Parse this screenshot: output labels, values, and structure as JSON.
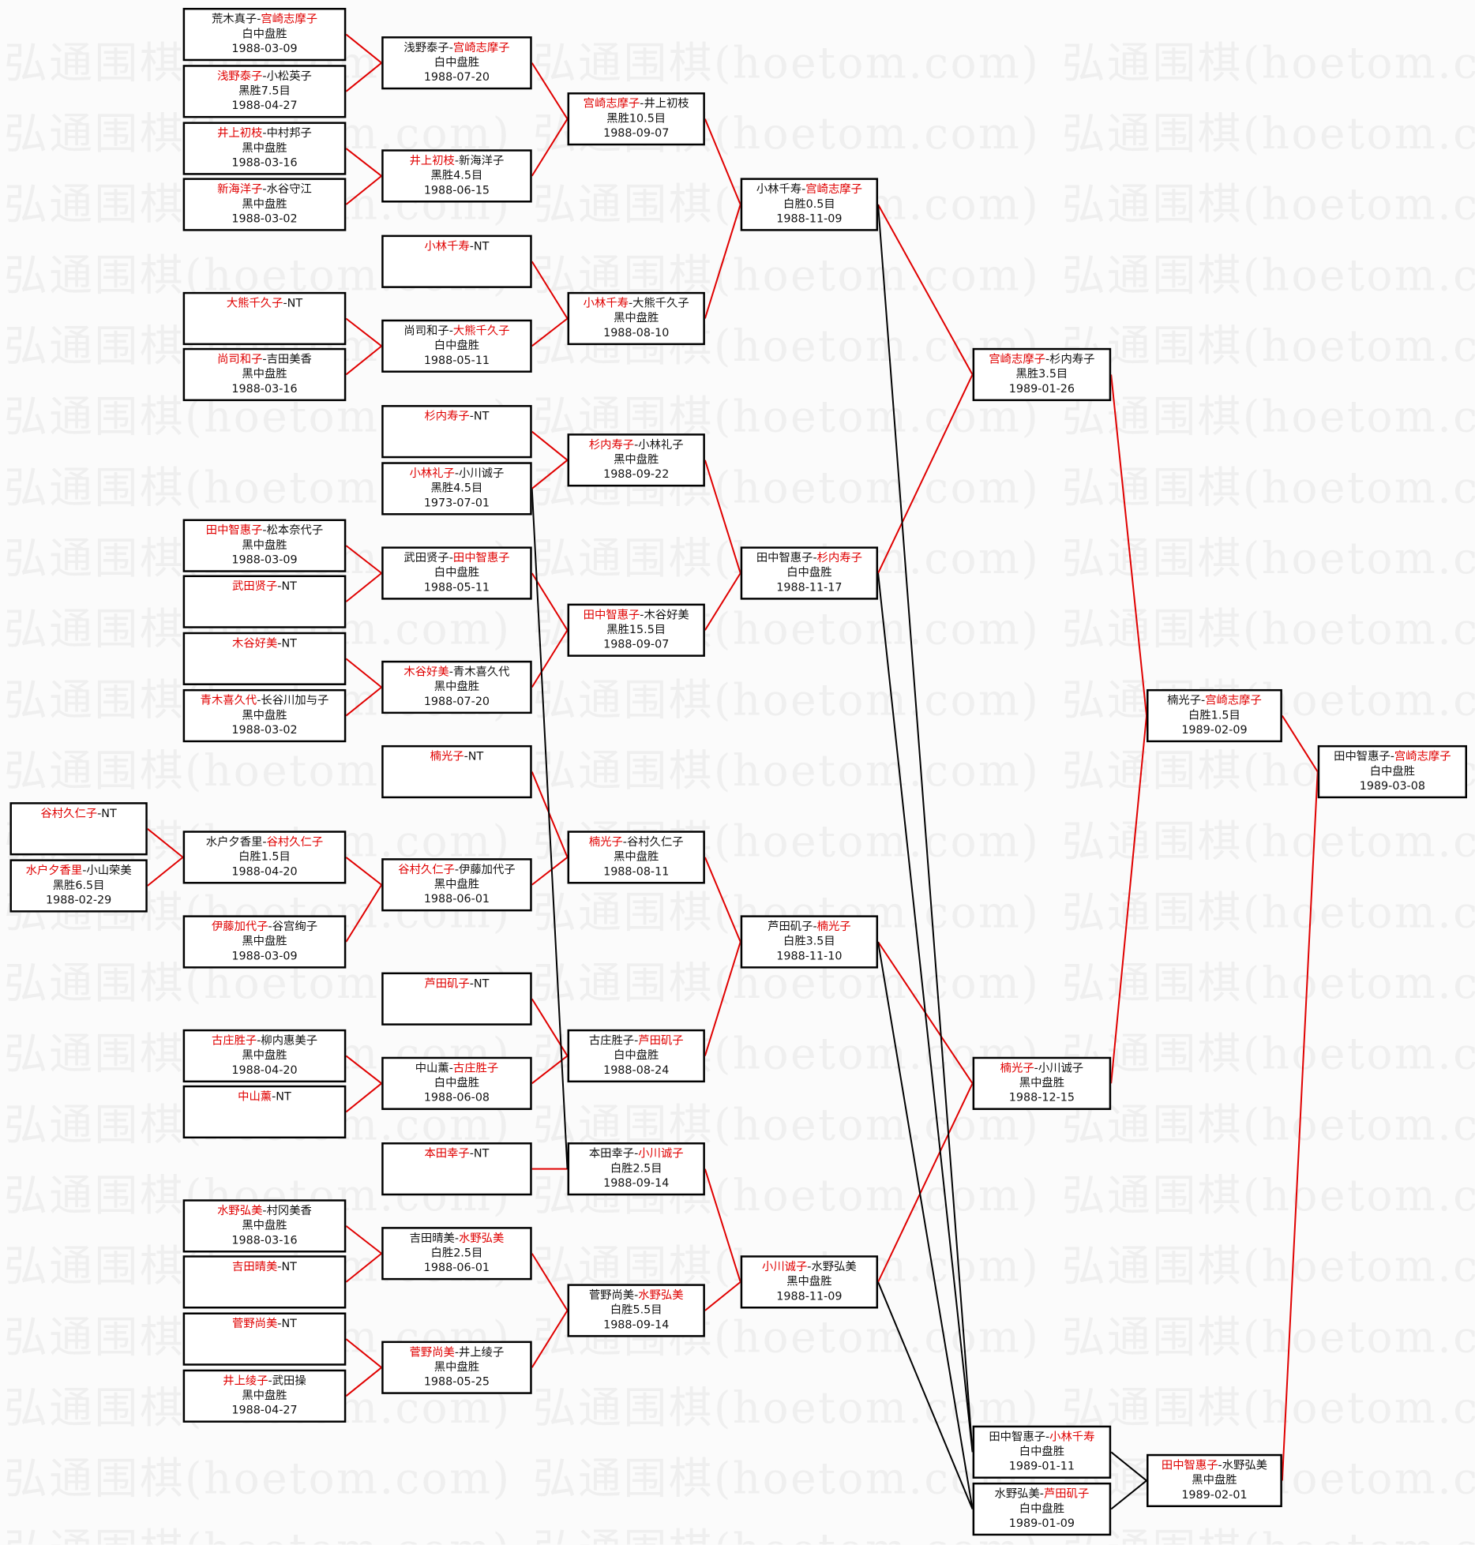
{
  "watermark": "弘通围棋(hoetom.com)",
  "colors": {
    "winner": "#e00000",
    "winner_line": "#e00000",
    "loser_line": "#000000"
  },
  "matches": [
    {
      "players": [
        {
          "name": "谷村久仁子",
          "winner": true
        },
        {
          "name": "NT",
          "winner": false
        }
      ],
      "result": "",
      "date": ""
    },
    {
      "players": [
        {
          "name": "水户夕香里",
          "winner": true
        },
        {
          "name": "小山荣美",
          "winner": false
        }
      ],
      "result": "黑胜6.5目",
      "date": "1988-02-29"
    },
    {
      "players": [
        {
          "name": "荒木真子",
          "winner": false
        },
        {
          "name": "宫崎志摩子",
          "winner": true
        }
      ],
      "result": "白中盘胜",
      "date": "1988-03-09"
    },
    {
      "players": [
        {
          "name": "浅野泰子",
          "winner": true
        },
        {
          "name": "小松英子",
          "winner": false
        }
      ],
      "result": "黑胜7.5目",
      "date": "1988-04-27"
    },
    {
      "players": [
        {
          "name": "井上初枝",
          "winner": true
        },
        {
          "name": "中村邦子",
          "winner": false
        }
      ],
      "result": "黑中盘胜",
      "date": "1988-03-16"
    },
    {
      "players": [
        {
          "name": "新海洋子",
          "winner": true
        },
        {
          "name": "水谷守江",
          "winner": false
        }
      ],
      "result": "黑中盘胜",
      "date": "1988-03-02"
    },
    {
      "players": [
        {
          "name": "大熊千久子",
          "winner": true
        },
        {
          "name": "NT",
          "winner": false
        }
      ],
      "result": "",
      "date": ""
    },
    {
      "players": [
        {
          "name": "尚司和子",
          "winner": true
        },
        {
          "name": "吉田美香",
          "winner": false
        }
      ],
      "result": "黑中盘胜",
      "date": "1988-03-16"
    },
    {
      "players": [
        {
          "name": "田中智惠子",
          "winner": true
        },
        {
          "name": "松本奈代子",
          "winner": false
        }
      ],
      "result": "黑中盘胜",
      "date": "1988-03-09"
    },
    {
      "players": [
        {
          "name": "武田贤子",
          "winner": true
        },
        {
          "name": "NT",
          "winner": false
        }
      ],
      "result": "",
      "date": ""
    },
    {
      "players": [
        {
          "name": "木谷好美",
          "winner": true
        },
        {
          "name": "NT",
          "winner": false
        }
      ],
      "result": "",
      "date": ""
    },
    {
      "players": [
        {
          "name": "青木喜久代",
          "winner": true
        },
        {
          "name": "长谷川加与子",
          "winner": false
        }
      ],
      "result": "黑中盘胜",
      "date": "1988-03-02"
    },
    {
      "players": [
        {
          "name": "水户夕香里",
          "winner": false
        },
        {
          "name": "谷村久仁子",
          "winner": true
        }
      ],
      "result": "白胜1.5目",
      "date": "1988-04-20"
    },
    {
      "players": [
        {
          "name": "伊藤加代子",
          "winner": true
        },
        {
          "name": "谷宫绚子",
          "winner": false
        }
      ],
      "result": "黑中盘胜",
      "date": "1988-03-09"
    },
    {
      "players": [
        {
          "name": "古庄胜子",
          "winner": true
        },
        {
          "name": "柳内惠美子",
          "winner": false
        }
      ],
      "result": "黑中盘胜",
      "date": "1988-04-20"
    },
    {
      "players": [
        {
          "name": "中山薰",
          "winner": true
        },
        {
          "name": "NT",
          "winner": false
        }
      ],
      "result": "",
      "date": ""
    },
    {
      "players": [
        {
          "name": "水野弘美",
          "winner": true
        },
        {
          "name": "村冈美香",
          "winner": false
        }
      ],
      "result": "黑中盘胜",
      "date": "1988-03-16"
    },
    {
      "players": [
        {
          "name": "吉田晴美",
          "winner": true
        },
        {
          "name": "NT",
          "winner": false
        }
      ],
      "result": "",
      "date": ""
    },
    {
      "players": [
        {
          "name": "菅野尚美",
          "winner": true
        },
        {
          "name": "NT",
          "winner": false
        }
      ],
      "result": "",
      "date": ""
    },
    {
      "players": [
        {
          "name": "井上绫子",
          "winner": true
        },
        {
          "name": "武田操",
          "winner": false
        }
      ],
      "result": "黑中盘胜",
      "date": "1988-04-27"
    },
    {
      "players": [
        {
          "name": "浅野泰子",
          "winner": false
        },
        {
          "name": "宫崎志摩子",
          "winner": true
        }
      ],
      "result": "白中盘胜",
      "date": "1988-07-20"
    },
    {
      "players": [
        {
          "name": "井上初枝",
          "winner": true
        },
        {
          "name": "新海洋子",
          "winner": false
        }
      ],
      "result": "黑胜4.5目",
      "date": "1988-06-15"
    },
    {
      "players": [
        {
          "name": "小林千寿",
          "winner": true
        },
        {
          "name": "NT",
          "winner": false
        }
      ],
      "result": "",
      "date": ""
    },
    {
      "players": [
        {
          "name": "尚司和子",
          "winner": false
        },
        {
          "name": "大熊千久子",
          "winner": true
        }
      ],
      "result": "白中盘胜",
      "date": "1988-05-11"
    },
    {
      "players": [
        {
          "name": "杉内寿子",
          "winner": true
        },
        {
          "name": "NT",
          "winner": false
        }
      ],
      "result": "",
      "date": ""
    },
    {
      "players": [
        {
          "name": "小林礼子",
          "winner": true
        },
        {
          "name": "小川诚子",
          "winner": false
        }
      ],
      "result": "黑胜4.5目",
      "date": "1973-07-01"
    },
    {
      "players": [
        {
          "name": "武田贤子",
          "winner": false
        },
        {
          "name": "田中智惠子",
          "winner": true
        }
      ],
      "result": "白中盘胜",
      "date": "1988-05-11"
    },
    {
      "players": [
        {
          "name": "木谷好美",
          "winner": true
        },
        {
          "name": "青木喜久代",
          "winner": false
        }
      ],
      "result": "黑中盘胜",
      "date": "1988-07-20"
    },
    {
      "players": [
        {
          "name": "楠光子",
          "winner": true
        },
        {
          "name": "NT",
          "winner": false
        }
      ],
      "result": "",
      "date": ""
    },
    {
      "players": [
        {
          "name": "谷村久仁子",
          "winner": true
        },
        {
          "name": "伊藤加代子",
          "winner": false
        }
      ],
      "result": "黑中盘胜",
      "date": "1988-06-01"
    },
    {
      "players": [
        {
          "name": "芦田矶子",
          "winner": true
        },
        {
          "name": "NT",
          "winner": false
        }
      ],
      "result": "",
      "date": ""
    },
    {
      "players": [
        {
          "name": "中山薰",
          "winner": false
        },
        {
          "name": "古庄胜子",
          "winner": true
        }
      ],
      "result": "白中盘胜",
      "date": "1988-06-08"
    },
    {
      "players": [
        {
          "name": "本田幸子",
          "winner": true
        },
        {
          "name": "NT",
          "winner": false
        }
      ],
      "result": "",
      "date": ""
    },
    {
      "players": [
        {
          "name": "吉田晴美",
          "winner": false
        },
        {
          "name": "水野弘美",
          "winner": true
        }
      ],
      "result": "白胜2.5目",
      "date": "1988-06-01"
    },
    {
      "players": [
        {
          "name": "菅野尚美",
          "winner": true
        },
        {
          "name": "井上绫子",
          "winner": false
        }
      ],
      "result": "黑中盘胜",
      "date": "1988-05-25"
    },
    {
      "players": [
        {
          "name": "宫崎志摩子",
          "winner": true
        },
        {
          "name": "井上初枝",
          "winner": false
        }
      ],
      "result": "黑胜10.5目",
      "date": "1988-09-07"
    },
    {
      "players": [
        {
          "name": "小林千寿",
          "winner": true
        },
        {
          "name": "大熊千久子",
          "winner": false
        }
      ],
      "result": "黑中盘胜",
      "date": "1988-08-10"
    },
    {
      "players": [
        {
          "name": "杉内寿子",
          "winner": true
        },
        {
          "name": "小林礼子",
          "winner": false
        }
      ],
      "result": "黑中盘胜",
      "date": "1988-09-22"
    },
    {
      "players": [
        {
          "name": "田中智惠子",
          "winner": true
        },
        {
          "name": "木谷好美",
          "winner": false
        }
      ],
      "result": "黑胜15.5目",
      "date": "1988-09-07"
    },
    {
      "players": [
        {
          "name": "楠光子",
          "winner": true
        },
        {
          "name": "谷村久仁子",
          "winner": false
        }
      ],
      "result": "黑中盘胜",
      "date": "1988-08-11"
    },
    {
      "players": [
        {
          "name": "古庄胜子",
          "winner": false
        },
        {
          "name": "芦田矶子",
          "winner": true
        }
      ],
      "result": "白中盘胜",
      "date": "1988-08-24"
    },
    {
      "players": [
        {
          "name": "本田幸子",
          "winner": false
        },
        {
          "name": "小川诚子",
          "winner": true
        }
      ],
      "result": "白胜2.5目",
      "date": "1988-09-14"
    },
    {
      "players": [
        {
          "name": "菅野尚美",
          "winner": false
        },
        {
          "name": "水野弘美",
          "winner": true
        }
      ],
      "result": "白胜5.5目",
      "date": "1988-09-14"
    },
    {
      "players": [
        {
          "name": "小林千寿",
          "winner": false
        },
        {
          "name": "宫崎志摩子",
          "winner": true
        }
      ],
      "result": "白胜0.5目",
      "date": "1988-11-09"
    },
    {
      "players": [
        {
          "name": "田中智惠子",
          "winner": false
        },
        {
          "name": "杉内寿子",
          "winner": true
        }
      ],
      "result": "白中盘胜",
      "date": "1988-11-17"
    },
    {
      "players": [
        {
          "name": "芦田矶子",
          "winner": false
        },
        {
          "name": "楠光子",
          "winner": true
        }
      ],
      "result": "白胜3.5目",
      "date": "1988-11-10"
    },
    {
      "players": [
        {
          "name": "小川诚子",
          "winner": true
        },
        {
          "name": "水野弘美",
          "winner": false
        }
      ],
      "result": "黑中盘胜",
      "date": "1988-11-09"
    },
    {
      "players": [
        {
          "name": "宫崎志摩子",
          "winner": true
        },
        {
          "name": "杉内寿子",
          "winner": false
        }
      ],
      "result": "黑胜3.5目",
      "date": "1989-01-26"
    },
    {
      "players": [
        {
          "name": "楠光子",
          "winner": true
        },
        {
          "name": "小川诚子",
          "winner": false
        }
      ],
      "result": "黑中盘胜",
      "date": "1988-12-15"
    },
    {
      "players": [
        {
          "name": "田中智惠子",
          "winner": false
        },
        {
          "name": "小林千寿",
          "winner": true
        }
      ],
      "result": "白中盘胜",
      "date": "1989-01-11"
    },
    {
      "players": [
        {
          "name": "水野弘美",
          "winner": false
        },
        {
          "name": "芦田矶子",
          "winner": true
        }
      ],
      "result": "白中盘胜",
      "date": "1989-01-09"
    },
    {
      "players": [
        {
          "name": "楠光子",
          "winner": false
        },
        {
          "name": "宫崎志摩子",
          "winner": true
        }
      ],
      "result": "白胜1.5目",
      "date": "1989-02-09"
    },
    {
      "players": [
        {
          "name": "田中智惠子",
          "winner": true
        },
        {
          "name": "水野弘美",
          "winner": false
        }
      ],
      "result": "黑中盘胜",
      "date": "1989-02-01"
    },
    {
      "players": [
        {
          "name": "田中智惠子",
          "winner": false
        },
        {
          "name": "宫崎志摩子",
          "winner": true
        }
      ],
      "result": "白中盘胜",
      "date": "1989-03-08"
    }
  ]
}
